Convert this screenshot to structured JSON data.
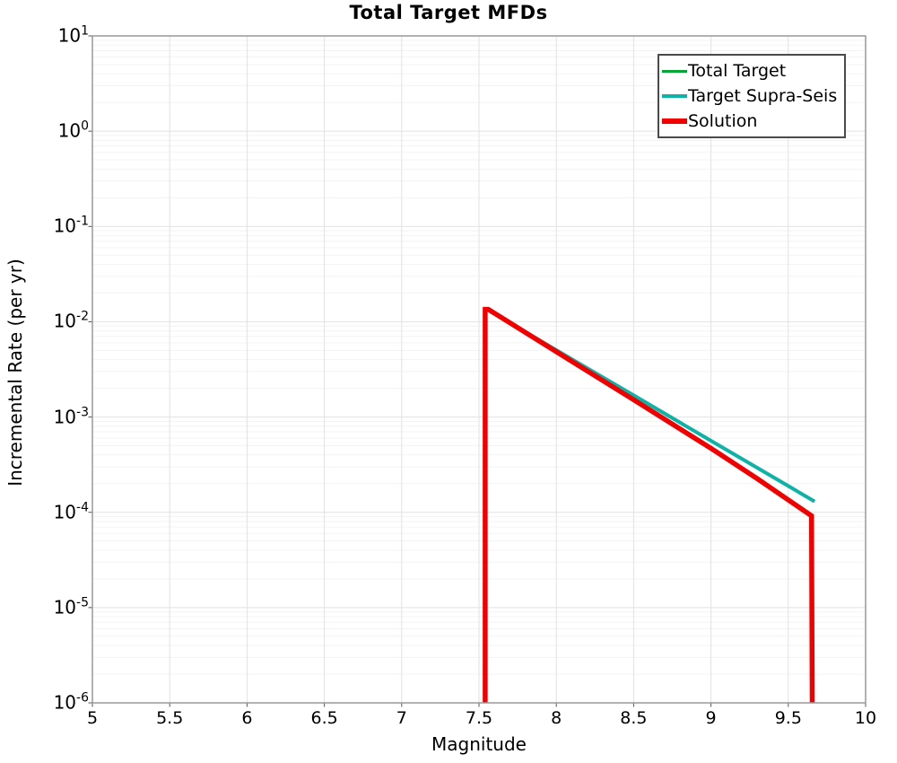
{
  "chart_data": {
    "type": "line",
    "title": "Total Target MFDs",
    "xlabel": "Magnitude",
    "ylabel": "Incremental Rate (per yr)",
    "xlim": [
      5,
      10
    ],
    "ylim": [
      1e-06,
      10
    ],
    "y_scale": "log",
    "x_ticks": [
      5,
      5.5,
      6,
      6.5,
      7,
      7.5,
      8,
      8.5,
      9,
      9.5,
      10
    ],
    "x_tick_labels": [
      "5",
      "5.5",
      "6",
      "6.5",
      "7",
      "7.5",
      "8",
      "8.5",
      "9",
      "9.5",
      "10"
    ],
    "y_tick_exponents": [
      1,
      0,
      -1,
      -2,
      -3,
      -4,
      -5,
      -6
    ],
    "grid": true,
    "grid_minor": true,
    "legend_position": "top-right",
    "colors": {
      "total_target": "#00a833",
      "target_supra_seis": "#0db3a6",
      "solution": "#f20000",
      "grid_major": "#e2e2e2",
      "grid_minor": "#f3f3f3",
      "plot_border": "#999999"
    },
    "series": [
      {
        "name": "Total Target",
        "color": "#00a833",
        "width": 3,
        "points": [
          [
            7.55,
            0.0135
          ],
          [
            8.0,
            0.00504
          ],
          [
            8.5,
            0.00169
          ],
          [
            9.0,
            0.000564
          ],
          [
            9.5,
            0.000189
          ],
          [
            9.67,
            0.00013
          ]
        ]
      },
      {
        "name": "Target Supra-Seis",
        "color": "#0db3a6",
        "width": 4,
        "points": [
          [
            7.55,
            0.0135
          ],
          [
            8.0,
            0.00504
          ],
          [
            8.5,
            0.00169
          ],
          [
            9.0,
            0.000564
          ],
          [
            9.5,
            0.000189
          ],
          [
            9.67,
            0.00013
          ]
        ]
      },
      {
        "name": "Solution",
        "color": "#f20000",
        "width": 5.5,
        "points": [
          [
            7.54,
            1e-06
          ],
          [
            7.54,
            0.0135
          ],
          [
            7.56,
            0.0135
          ],
          [
            8.0,
            0.00485
          ],
          [
            8.5,
            0.00152
          ],
          [
            9.0,
            0.00047
          ],
          [
            9.3,
            0.000225
          ],
          [
            9.65,
            9.2e-05
          ],
          [
            9.655,
            1e-06
          ]
        ]
      }
    ]
  }
}
